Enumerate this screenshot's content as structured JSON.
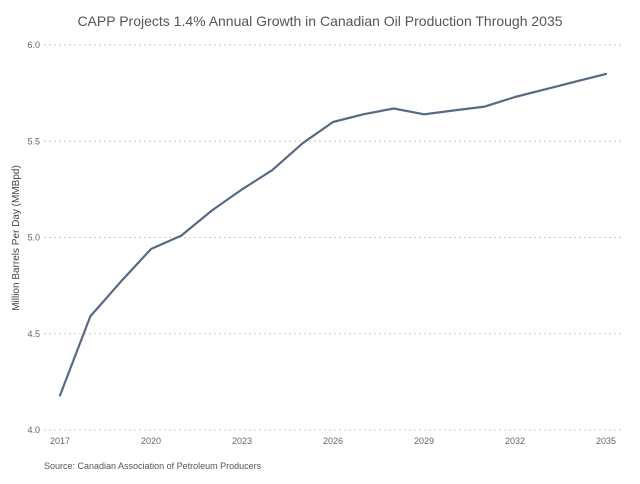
{
  "chart_data": {
    "type": "line",
    "title": "CAPP Projects 1.4% Annual Growth in Canadian Oil Production Through 2035",
    "xlabel": "",
    "ylabel": "Million Barrels Per Day (MMBpd)",
    "x": [
      2017,
      2018,
      2019,
      2020,
      2021,
      2022,
      2023,
      2024,
      2025,
      2026,
      2027,
      2028,
      2029,
      2030,
      2031,
      2032,
      2033,
      2034,
      2035
    ],
    "series": [
      {
        "values": [
          4.18,
          4.59,
          4.77,
          4.94,
          5.01,
          5.14,
          5.25,
          5.35,
          5.49,
          5.6,
          5.64,
          5.67,
          5.64,
          5.66,
          5.68,
          5.73,
          5.77,
          5.81,
          5.85
        ],
        "color": "#546a85"
      }
    ],
    "xticks": [
      "2017",
      "2020",
      "2023",
      "2026",
      "2029",
      "2032",
      "2035"
    ],
    "yticks": [
      "4.0",
      "4.5",
      "5.0",
      "5.5",
      "6.0"
    ],
    "ylim": [
      4.0,
      6.0
    ],
    "xlim": [
      2017,
      2035
    ],
    "grid": "horizontal dotted",
    "source": "Source: Canadian Association of Petroleum Producers"
  }
}
